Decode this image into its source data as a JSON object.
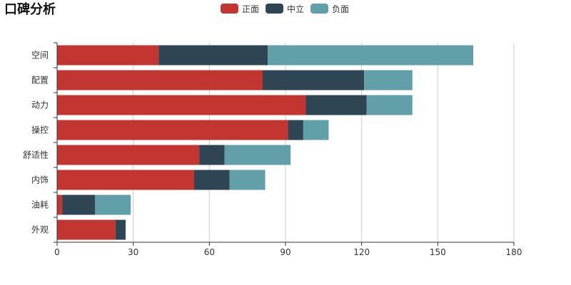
{
  "chart_data": {
    "type": "bar",
    "orientation": "horizontal",
    "stacked": true,
    "title": "口碑分析",
    "categories": [
      "空间",
      "配置",
      "动力",
      "操控",
      "舒适性",
      "内饰",
      "油耗",
      "外观"
    ],
    "series": [
      {
        "name": "正面",
        "color": "#c23531",
        "values": [
          40,
          81,
          98,
          91,
          56,
          54,
          2,
          23
        ]
      },
      {
        "name": "中立",
        "color": "#2f4554",
        "values": [
          43,
          40,
          24,
          6,
          10,
          14,
          13,
          4
        ]
      },
      {
        "name": "负面",
        "color": "#61a0a8",
        "values": [
          81,
          19,
          18,
          10,
          26,
          14,
          14,
          0
        ]
      }
    ],
    "x_ticks": [
      0,
      30,
      60,
      90,
      120,
      150,
      180
    ],
    "xlim": [
      0,
      180
    ],
    "grid": "vertical",
    "legend_position": "top-center"
  }
}
